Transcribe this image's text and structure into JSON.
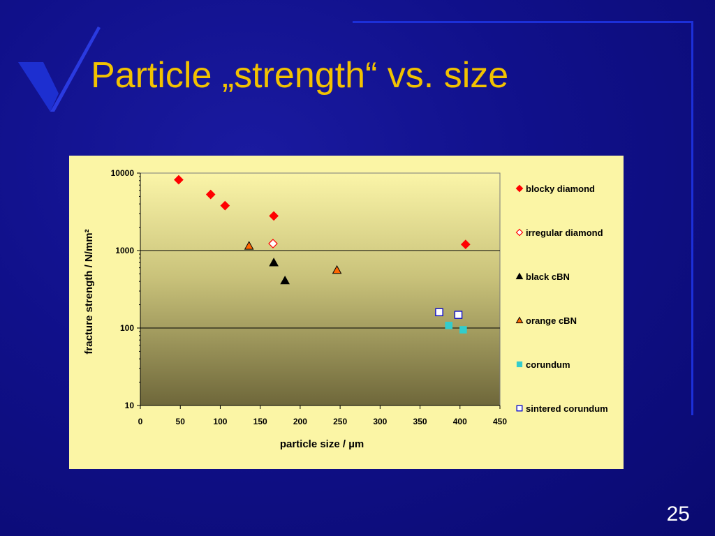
{
  "slide": {
    "title": "Particle „strength“ vs. size",
    "number": "25",
    "logo_icon": "checkmark-logo-icon",
    "colors": {
      "background": "#10108a",
      "title": "#f2c200",
      "panel": "#fbf5a5"
    }
  },
  "chart_data": {
    "type": "scatter",
    "title": "",
    "xlabel": "particle size / µm",
    "ylabel": "fracture strength / N/mm²",
    "xlim": [
      0,
      450
    ],
    "ylim": [
      10,
      10000
    ],
    "yscale": "log",
    "x_ticks": [
      "0",
      "50",
      "100",
      "150",
      "200",
      "250",
      "300",
      "350",
      "400",
      "450"
    ],
    "y_ticks": [
      "10",
      "100",
      "1000",
      "10000"
    ],
    "grid": "major horizontal",
    "legend_position": "right",
    "series": [
      {
        "name": "blocky diamond",
        "marker": "diamond-filled",
        "color": "#ff0000",
        "points": [
          [
            48,
            8200
          ],
          [
            88,
            5300
          ],
          [
            106,
            3800
          ],
          [
            167,
            2800
          ],
          [
            407,
            1200
          ]
        ]
      },
      {
        "name": "irregular diamond",
        "marker": "diamond-open",
        "color": "#ff0000",
        "points": [
          [
            166,
            1230
          ]
        ]
      },
      {
        "name": "black cBN",
        "marker": "triangle",
        "color": "#000000",
        "points": [
          [
            167,
            700
          ],
          [
            181,
            410
          ]
        ]
      },
      {
        "name": "orange cBN",
        "marker": "triangle",
        "color": "#ff6600",
        "points": [
          [
            136,
            1150
          ],
          [
            246,
            560
          ]
        ]
      },
      {
        "name": "corundum",
        "marker": "square-filled",
        "color": "#33cccc",
        "points": [
          [
            386,
            108
          ],
          [
            404,
            95
          ]
        ]
      },
      {
        "name": "sintered corundum",
        "marker": "square-open",
        "color": "#0000cc",
        "points": [
          [
            374,
            160
          ],
          [
            398,
            148
          ]
        ]
      }
    ]
  }
}
